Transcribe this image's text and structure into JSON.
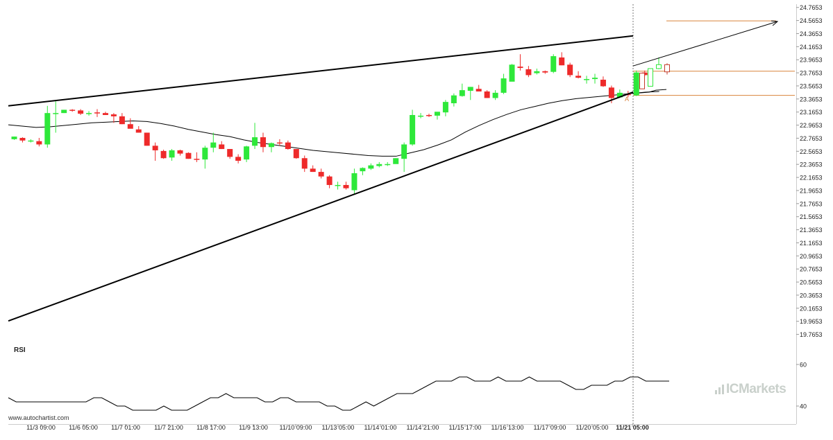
{
  "colors": {
    "up": "#2ee83a",
    "down": "#ee2a2a",
    "outline": "#c23a2a",
    "level": "#d9823a",
    "trend": "#000000",
    "grid": "#e4e4e4",
    "axis_text": "#222222"
  },
  "chart_data": {
    "type": "candlestick",
    "y_ticks": [
      "24.7653",
      "24.5653",
      "24.3653",
      "24.1653",
      "23.9653",
      "23.7653",
      "23.5653",
      "23.3653",
      "23.1653",
      "22.9653",
      "22.7653",
      "22.5653",
      "22.3653",
      "22.1653",
      "21.9653",
      "21.7653",
      "21.5653",
      "21.3653",
      "21.1653",
      "20.9653",
      "20.7653",
      "20.5653",
      "20.3653",
      "20.1653",
      "19.9653",
      "19.7653"
    ],
    "ylim": [
      19.6653,
      24.8153
    ],
    "x_ticks": [
      "11/3 09:00",
      "11/6 05:00",
      "11/7 01:00",
      "11/7 21:00",
      "11/8 17:00",
      "11/9 13:00",
      "11/10 09:00",
      "11/13 05:00",
      "11/14 01:00",
      "11/14 21:00",
      "11/15 17:00",
      "11/16 13:00",
      "11/17 09:00",
      "11/20 05:00",
      "11/21 05:00"
    ],
    "candles": [
      [
        22.75,
        22.79,
        22.74,
        22.79
      ],
      [
        22.77,
        22.78,
        22.7,
        22.73
      ],
      [
        22.72,
        22.75,
        22.7,
        22.73
      ],
      [
        22.72,
        22.77,
        22.64,
        22.67
      ],
      [
        22.67,
        23.26,
        22.62,
        23.15
      ],
      [
        23.15,
        23.33,
        22.85,
        23.15
      ],
      [
        23.15,
        23.2,
        23.15,
        23.2
      ],
      [
        23.2,
        23.21,
        23.17,
        23.19
      ],
      [
        23.19,
        23.21,
        23.12,
        23.14
      ],
      [
        23.15,
        23.18,
        23.11,
        23.15
      ],
      [
        23.16,
        23.21,
        23.09,
        23.15
      ],
      [
        23.15,
        23.17,
        23.12,
        23.12
      ],
      [
        23.13,
        23.15,
        23.0,
        23.1
      ],
      [
        23.1,
        23.15,
        22.98,
        22.98
      ],
      [
        22.98,
        23.07,
        22.92,
        22.91
      ],
      [
        22.9,
        22.95,
        22.85,
        22.85
      ],
      [
        22.85,
        22.85,
        22.65,
        22.65
      ],
      [
        22.65,
        22.7,
        22.42,
        22.58
      ],
      [
        22.57,
        22.59,
        22.45,
        22.46
      ],
      [
        22.47,
        22.6,
        22.42,
        22.58
      ],
      [
        22.58,
        22.59,
        22.5,
        22.53
      ],
      [
        22.54,
        22.55,
        22.45,
        22.45
      ],
      [
        22.45,
        22.55,
        22.4,
        22.44
      ],
      [
        22.44,
        22.65,
        22.3,
        22.62
      ],
      [
        22.62,
        22.85,
        22.55,
        22.7
      ],
      [
        22.67,
        22.72,
        22.6,
        22.6
      ],
      [
        22.6,
        22.6,
        22.45,
        22.48
      ],
      [
        22.48,
        22.52,
        22.38,
        22.42
      ],
      [
        22.44,
        22.65,
        22.4,
        22.64
      ],
      [
        22.65,
        23.0,
        22.6,
        22.78
      ],
      [
        22.78,
        22.85,
        22.55,
        22.63
      ],
      [
        22.63,
        22.7,
        22.55,
        22.69
      ],
      [
        22.7,
        22.75,
        22.65,
        22.69
      ],
      [
        22.7,
        22.73,
        22.59,
        22.6
      ],
      [
        22.6,
        22.6,
        22.45,
        22.46
      ],
      [
        22.46,
        22.5,
        22.25,
        22.3
      ],
      [
        22.3,
        22.35,
        22.25,
        22.25
      ],
      [
        22.25,
        22.3,
        22.15,
        22.18
      ],
      [
        22.18,
        22.2,
        22.0,
        22.05
      ],
      [
        22.05,
        22.1,
        21.98,
        22.05
      ],
      [
        22.05,
        22.1,
        21.98,
        22.0
      ],
      [
        21.97,
        22.3,
        21.9,
        22.23
      ],
      [
        22.26,
        22.32,
        22.2,
        22.31
      ],
      [
        22.3,
        22.38,
        22.28,
        22.35
      ],
      [
        22.34,
        22.4,
        22.32,
        22.37
      ],
      [
        22.36,
        22.4,
        22.34,
        22.37
      ],
      [
        22.37,
        22.46,
        22.38,
        22.46
      ],
      [
        22.45,
        22.7,
        22.25,
        22.67
      ],
      [
        22.67,
        23.2,
        22.65,
        23.12
      ],
      [
        23.1,
        23.15,
        23.07,
        23.11
      ],
      [
        23.12,
        23.14,
        23.09,
        23.11
      ],
      [
        23.11,
        23.15,
        23.05,
        23.17
      ],
      [
        23.16,
        23.35,
        23.1,
        23.32
      ],
      [
        23.3,
        23.45,
        23.25,
        23.42
      ],
      [
        23.41,
        23.6,
        23.4,
        23.5
      ],
      [
        23.49,
        23.55,
        23.35,
        23.55
      ],
      [
        23.52,
        23.58,
        23.48,
        23.48
      ],
      [
        23.48,
        23.5,
        23.38,
        23.38
      ],
      [
        23.38,
        23.5,
        23.35,
        23.46
      ],
      [
        23.46,
        23.75,
        23.44,
        23.68
      ],
      [
        23.63,
        23.9,
        23.66,
        23.89
      ],
      [
        23.86,
        24.05,
        23.8,
        23.84
      ],
      [
        23.82,
        23.87,
        23.7,
        23.73
      ],
      [
        23.76,
        23.83,
        23.74,
        23.79
      ],
      [
        23.79,
        23.8,
        23.75,
        23.77
      ],
      [
        23.78,
        24.05,
        23.76,
        24.02
      ],
      [
        24.0,
        24.08,
        23.88,
        23.88
      ],
      [
        23.89,
        23.92,
        23.7,
        23.73
      ],
      [
        23.72,
        23.79,
        23.68,
        23.69
      ],
      [
        23.67,
        23.72,
        23.6,
        23.67
      ],
      [
        23.67,
        23.75,
        23.6,
        23.69
      ],
      [
        23.66,
        23.71,
        23.55,
        23.56
      ],
      [
        23.54,
        23.57,
        23.3,
        23.38
      ],
      [
        23.39,
        23.51,
        23.38,
        23.46
      ],
      [
        23.44,
        23.49,
        23.39,
        23.43
      ],
      [
        23.42,
        23.8,
        23.41,
        23.77
      ],
      [
        23.77,
        23.8,
        23.71,
        23.73
      ]
    ],
    "projection_candles": [
      [
        23.76,
        23.76,
        23.52,
        23.52
      ],
      [
        23.56,
        23.83,
        23.56,
        23.83
      ],
      [
        23.83,
        24.0,
        23.82,
        23.89
      ],
      [
        23.89,
        23.91,
        23.74,
        23.78
      ]
    ],
    "moving_average": [
      22.97,
      22.95,
      22.93,
      22.94,
      22.96,
      22.98,
      23.0,
      23.01,
      23.02,
      23.03,
      23.02,
      22.99,
      22.95,
      22.9,
      22.86,
      22.82,
      22.79,
      22.74,
      22.7,
      22.67,
      22.64,
      22.61,
      22.58,
      22.56,
      22.54,
      22.52,
      22.5,
      22.49,
      22.49,
      22.54,
      22.59,
      22.66,
      22.74,
      22.86,
      22.96,
      23.05,
      23.13,
      23.2,
      23.25,
      23.3,
      23.34,
      23.37,
      23.39,
      23.41,
      23.43,
      23.45,
      23.47,
      23.48
    ],
    "resistance_line": [
      [
        22.58,
        23.26
      ],
      [
        24.26,
        24.33
      ]
    ],
    "support_line": [
      [
        22.58,
        19.97
      ],
      [
        24.24,
        23.47
      ]
    ],
    "breakout_arrow": [
      [
        24.26,
        23.87
      ],
      [
        24.74,
        24.55
      ]
    ],
    "target_level": 24.56,
    "upper_level": 23.79,
    "lower_level": 23.42,
    "breakout_label": "A",
    "rsi": {
      "label": "RSI",
      "ticks": [
        "60",
        "40"
      ],
      "ylim": [
        36,
        64
      ],
      "values": [
        44,
        42,
        42,
        42,
        42,
        42,
        42,
        42,
        42,
        42,
        42,
        44,
        44,
        42,
        40,
        40,
        38,
        38,
        38,
        38,
        40,
        38,
        38,
        38,
        40,
        42,
        44,
        44,
        46,
        44,
        44,
        44,
        44,
        42,
        42,
        44,
        44,
        42,
        42,
        42,
        42,
        40,
        40,
        38,
        38,
        40,
        42,
        40,
        42,
        44,
        46,
        46,
        46,
        48,
        50,
        52,
        52,
        52,
        54,
        54,
        52,
        52,
        52,
        54,
        52,
        52,
        52,
        54,
        52,
        52,
        52,
        52,
        50,
        48,
        48,
        50,
        50,
        50,
        52,
        52,
        54,
        54,
        52,
        52,
        52,
        52
      ]
    }
  },
  "footer": {
    "source_text": "www.autochartist.com",
    "brand_prefix": "IC",
    "brand_suffix": "Markets"
  }
}
